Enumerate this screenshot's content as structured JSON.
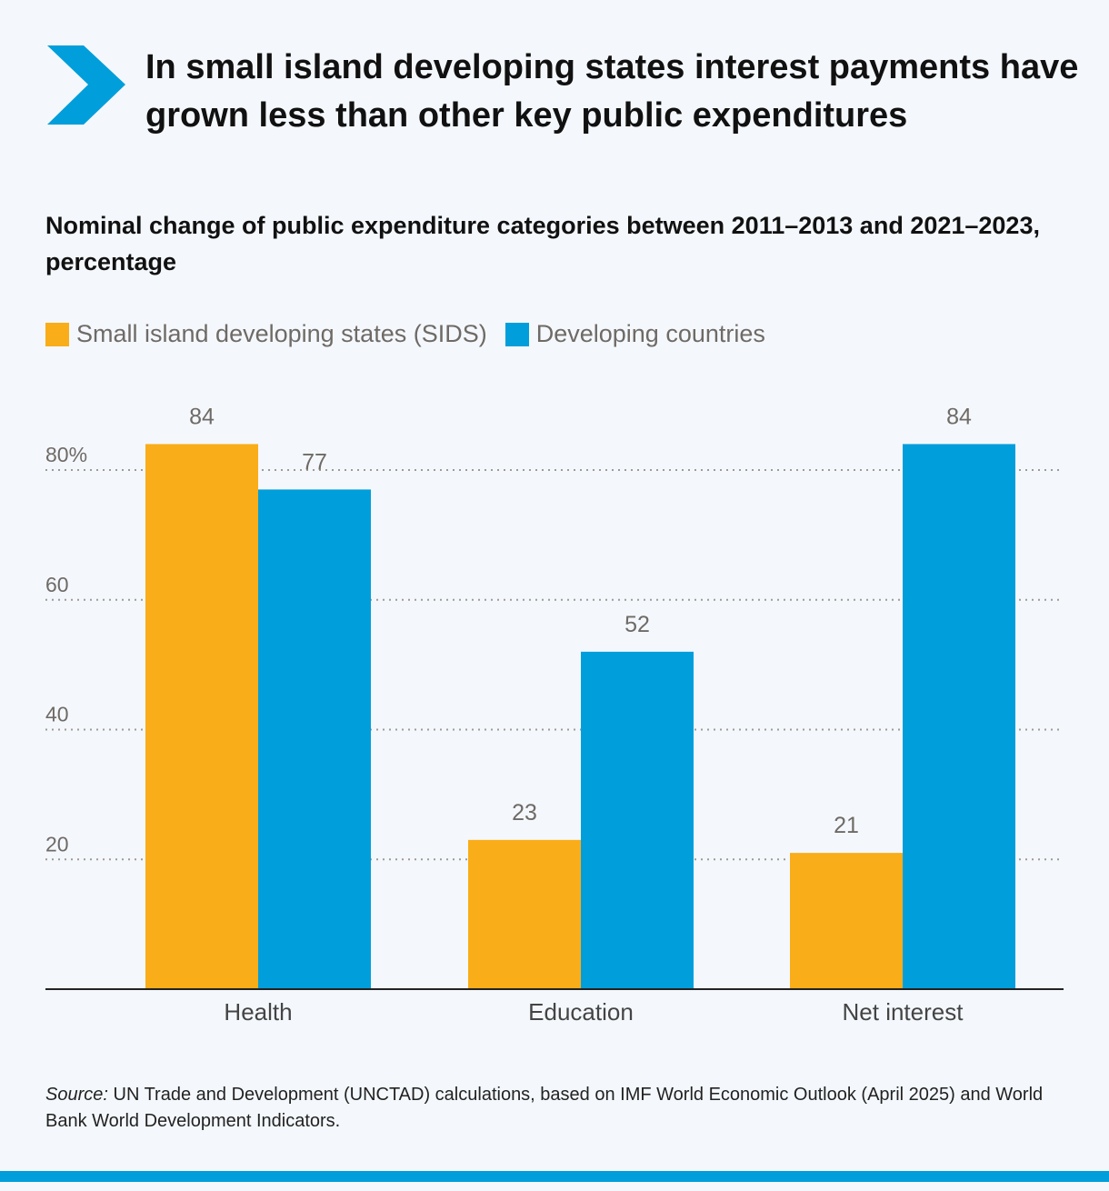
{
  "header": {
    "title": "In small island developing states interest payments have grown less than other key public expenditures",
    "logo_icon": "chevron-right-icon"
  },
  "chart_data": {
    "type": "bar",
    "title": "",
    "subtitle": "Nominal change of public expenditure categories between 2011–2013 and 2021–2023, percentage",
    "categories": [
      "Health",
      "Education",
      "Net interest"
    ],
    "series": [
      {
        "name": "Small island developing states (SIDS)",
        "values": [
          84,
          23,
          21
        ],
        "color": "#f9ad19"
      },
      {
        "name": "Developing countries",
        "values": [
          77,
          52,
          84
        ],
        "color": "#009edb"
      }
    ],
    "ylim": [
      0,
      80
    ],
    "yticks": [
      20,
      40,
      60,
      80
    ],
    "ytick_labels": [
      "20",
      "40",
      "60",
      "80%"
    ],
    "grid": true,
    "legend": "top-left",
    "xlabel": "",
    "ylabel": ""
  },
  "source": {
    "label": "Source:",
    "text": " UN Trade and Development (UNCTAD) calculations, based on IMF World Economic Outlook (April 2025) and World Bank World Development Indicators."
  },
  "colors": {
    "accent": "#009edb",
    "sids": "#f9ad19",
    "background": "#f4f8fc"
  }
}
